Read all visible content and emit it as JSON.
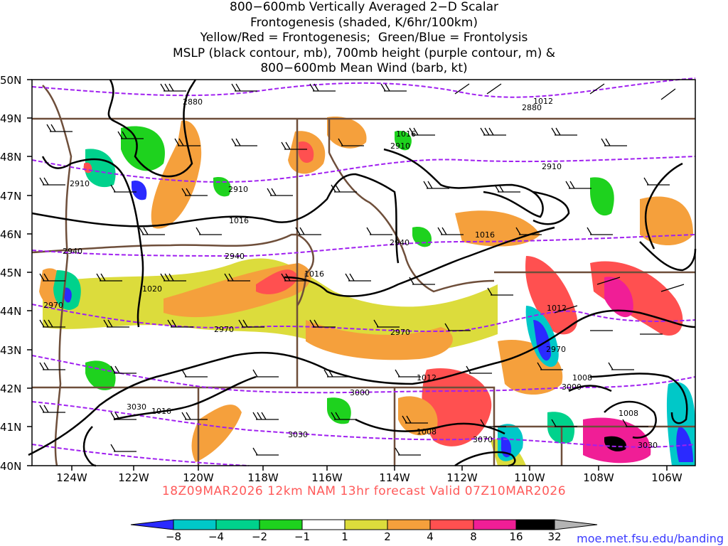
{
  "title_lines": [
    "800−600mb Vertically Averaged 2−D Scalar",
    "Frontogenesis (shaded, K/6hr/100km)",
    "Yellow/Red = Frontogenesis;  Green/Blue = Frontolysis",
    "MSLP (black contour, mb), 700mb height (purple contour, m) &",
    "800−600mb Mean Wind (barb, kt)"
  ],
  "lat_labels": [
    "50N",
    "49N",
    "48N",
    "47N",
    "46N",
    "45N",
    "44N",
    "43N",
    "42N",
    "41N",
    "40N"
  ],
  "lon_labels": [
    "124W",
    "122W",
    "120W",
    "118W",
    "116W",
    "114W",
    "112W",
    "110W",
    "108W",
    "106W"
  ],
  "valid_text": "18Z09MAR2026 12km NAM 13hr forecast Valid 07Z10MAR2026",
  "credit_text": "moe.met.fsu.edu/banding",
  "colorbar": {
    "labels": [
      "−8",
      "−4",
      "−2",
      "−1",
      "1",
      "2",
      "4",
      "8",
      "16",
      "32"
    ],
    "colors": [
      "#2a2aff",
      "#00c8c8",
      "#00d28c",
      "#1ed21e",
      "#ffffff",
      "#dcdc3c",
      "#f5a03c",
      "#ff5050",
      "#f01e96",
      "#000000",
      "#b4b4b4"
    ]
  },
  "height_labels": [
    "2880",
    "2880",
    "2910",
    "2910",
    "2910",
    "2910",
    "2940",
    "2940",
    "2940",
    "2970",
    "2970",
    "2970",
    "2970",
    "3000",
    "3000",
    "3030",
    "3030",
    "3030",
    "3070"
  ],
  "pressure_labels": [
    "1012",
    "1016",
    "1016",
    "1016",
    "1016",
    "1020",
    "1016",
    "1012",
    "1008",
    "1012",
    "1008",
    "1008"
  ],
  "colors": {
    "height_contour": "#a020f0",
    "pressure_contour": "#000000",
    "border": "#6e4e3a"
  }
}
